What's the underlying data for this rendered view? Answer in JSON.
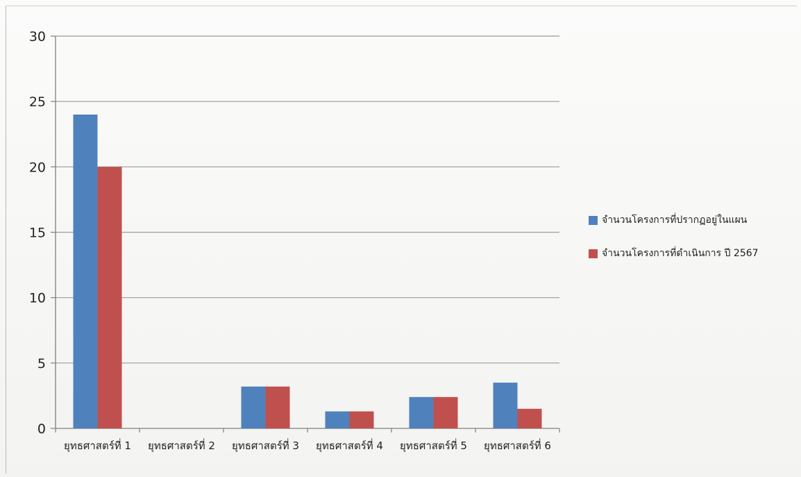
{
  "chart_data": {
    "type": "bar",
    "categories": [
      "ยุทธศาสตร์ที่ 1",
      "ยุทธศาสตร์ที่ 2",
      "ยุทธศาสตร์ที่ 3",
      "ยุทธศาสตร์ที่ 4",
      "ยุทธศาสตร์ที่ 5",
      "ยุทธศาสตร์ที่ 6"
    ],
    "series": [
      {
        "name": "จำนวนโครงการที่ปรากฏอยู่ในแผน",
        "color": "#4f81bd",
        "values": [
          24,
          0,
          3.2,
          1.3,
          2.4,
          3.5
        ]
      },
      {
        "name": "จำนวนโครงการที่ดำเนินการ ปี 2567",
        "color": "#c0504d",
        "values": [
          20,
          0,
          3.2,
          1.3,
          2.4,
          1.5
        ]
      }
    ],
    "y_ticks": [
      "0",
      "5",
      "10",
      "15",
      "20",
      "25",
      "30"
    ],
    "ylim": [
      0,
      30
    ],
    "grid": true,
    "legend_position": "right"
  }
}
